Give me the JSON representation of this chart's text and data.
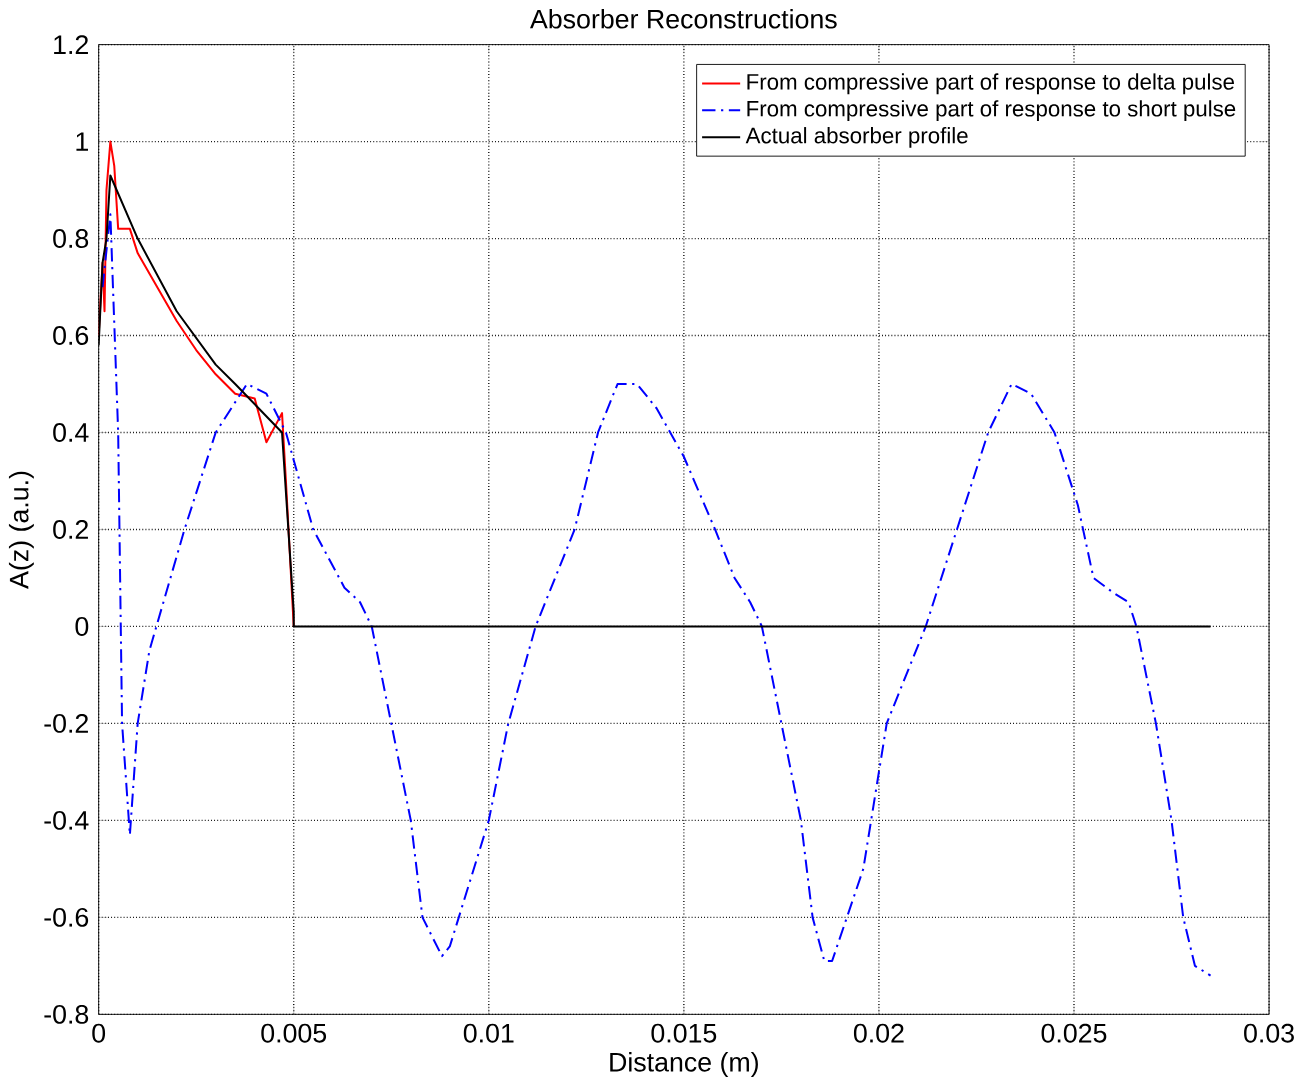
{
  "chart_data": {
    "type": "line",
    "title": "Absorber Reconstructions",
    "xlabel": "Distance (m)",
    "ylabel": "A(z) (a.u.)",
    "xlim": [
      0,
      0.03
    ],
    "ylim": [
      -0.8,
      1.2
    ],
    "xticks": [
      0,
      0.005,
      0.01,
      0.015,
      0.02,
      0.025,
      0.03
    ],
    "yticks": [
      -0.8,
      -0.6,
      -0.4,
      -0.2,
      0,
      0.2,
      0.4,
      0.6,
      0.8,
      1,
      1.2
    ],
    "grid": true,
    "legend": "top right",
    "series": [
      {
        "name": "From compressive part of response to delta pulse",
        "color": "#ff0000",
        "line_style": "solid",
        "x": [
          0,
          0.0001,
          0.00015,
          0.0002,
          0.0003,
          0.0004,
          0.0005,
          0.0008,
          0.001,
          0.0015,
          0.002,
          0.0025,
          0.003,
          0.0035,
          0.004,
          0.0043,
          0.0047,
          0.0048,
          0.005
        ],
        "values": [
          0.6,
          0.75,
          0.65,
          0.9,
          1.0,
          0.95,
          0.82,
          0.82,
          0.77,
          0.7,
          0.63,
          0.57,
          0.52,
          0.48,
          0.47,
          0.38,
          0.44,
          0.3,
          0
        ]
      },
      {
        "name": "From compressive part of response to short pulse",
        "color": "#0000ff",
        "line_style": "dashdotted",
        "x": [
          0.0001,
          0.0003,
          0.0005,
          0.0006,
          0.0008,
          0.001,
          0.0013,
          0.0022,
          0.003,
          0.0038,
          0.0043,
          0.0048,
          0.0055,
          0.0063,
          0.0067,
          0.007,
          0.0075,
          0.008,
          0.0083,
          0.0088,
          0.009,
          0.01,
          0.0105,
          0.0112,
          0.0122,
          0.0128,
          0.0133,
          0.0138,
          0.0143,
          0.015,
          0.0158,
          0.0163,
          0.0167,
          0.017,
          0.0175,
          0.018,
          0.0183,
          0.0186,
          0.0188,
          0.0196,
          0.0202,
          0.0212,
          0.022,
          0.0228,
          0.0234,
          0.0239,
          0.0245,
          0.0251,
          0.0255,
          0.026,
          0.0264,
          0.0266,
          0.0271,
          0.0275,
          0.0278,
          0.0281,
          0.0285
        ],
        "values": [
          0.7,
          0.85,
          0.4,
          -0.2,
          -0.43,
          -0.2,
          -0.05,
          0.2,
          0.4,
          0.5,
          0.48,
          0.4,
          0.2,
          0.08,
          0.05,
          0,
          -0.2,
          -0.4,
          -0.6,
          -0.68,
          -0.66,
          -0.4,
          -0.2,
          0,
          0.2,
          0.4,
          0.5,
          0.5,
          0.45,
          0.35,
          0.2,
          0.1,
          0.05,
          0,
          -0.2,
          -0.4,
          -0.6,
          -0.69,
          -0.69,
          -0.5,
          -0.2,
          0,
          0.2,
          0.4,
          0.5,
          0.48,
          0.4,
          0.25,
          0.1,
          0.07,
          0.05,
          0,
          -0.2,
          -0.4,
          -0.6,
          -0.7,
          -0.72
        ]
      },
      {
        "name": "Actual absorber profile",
        "color": "#000000",
        "line_style": "solid",
        "x": [
          0,
          0.0001,
          0.0002,
          0.0003,
          0.001,
          0.002,
          0.003,
          0.0035,
          0.0047,
          0.005,
          0.005,
          0.0285
        ],
        "values": [
          0.58,
          0.75,
          0.8,
          0.93,
          0.8,
          0.65,
          0.54,
          0.5,
          0.4,
          0.03,
          0,
          0
        ]
      }
    ]
  }
}
